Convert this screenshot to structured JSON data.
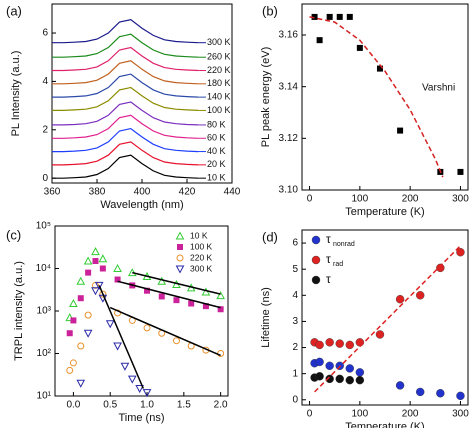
{
  "chart_data": [
    {
      "type": "line",
      "label": "(a)",
      "x_label": "Wavelength (nm)",
      "y_label": "PL Intensity (a.u.)",
      "xlim": [
        360,
        440
      ],
      "xticks": [
        360,
        380,
        400,
        420,
        440
      ],
      "ylim": [
        -0.2,
        7.2
      ],
      "yticks": [
        0,
        2,
        4,
        6
      ],
      "x": [
        360,
        365,
        370,
        375,
        380,
        385,
        390,
        395,
        400,
        405,
        410,
        415,
        420,
        425
      ],
      "series": [
        {
          "name": "10 K",
          "color": "#000000",
          "values": [
            0,
            0,
            0.02,
            0.05,
            0.15,
            0.4,
            0.85,
            0.95,
            0.6,
            0.3,
            0.12,
            0.05,
            0.02,
            0
          ]
        },
        {
          "name": "20 K",
          "color": "#e8112d",
          "values": [
            0.55,
            0.55,
            0.57,
            0.6,
            0.7,
            0.95,
            1.4,
            1.5,
            1.15,
            0.85,
            0.67,
            0.6,
            0.57,
            0.55
          ]
        },
        {
          "name": "40 K",
          "color": "#1f3fff",
          "values": [
            1.1,
            1.1,
            1.12,
            1.15,
            1.25,
            1.5,
            1.95,
            2.05,
            1.7,
            1.4,
            1.22,
            1.15,
            1.12,
            1.1
          ]
        },
        {
          "name": "60 K",
          "color": "#e0208e",
          "values": [
            1.65,
            1.65,
            1.67,
            1.7,
            1.8,
            2.05,
            2.5,
            2.6,
            2.25,
            1.95,
            1.77,
            1.7,
            1.67,
            1.65
          ]
        },
        {
          "name": "80 K",
          "color": "#7b2fbf",
          "values": [
            2.2,
            2.2,
            2.22,
            2.25,
            2.35,
            2.6,
            3.05,
            3.15,
            2.8,
            2.5,
            2.32,
            2.25,
            2.22,
            2.2
          ]
        },
        {
          "name": "100 K",
          "color": "#8c8c00",
          "values": [
            2.8,
            2.8,
            2.82,
            2.85,
            2.95,
            3.2,
            3.65,
            3.75,
            3.4,
            3.1,
            2.92,
            2.85,
            2.82,
            2.8
          ]
        },
        {
          "name": "140 K",
          "color": "#2b4aa8",
          "values": [
            3.35,
            3.35,
            3.37,
            3.4,
            3.5,
            3.75,
            4.2,
            4.3,
            3.95,
            3.65,
            3.47,
            3.4,
            3.37,
            3.35
          ]
        },
        {
          "name": "180 K",
          "color": "#c06020",
          "values": [
            3.9,
            3.9,
            3.92,
            3.95,
            4.05,
            4.3,
            4.75,
            4.85,
            4.5,
            4.2,
            4.02,
            3.95,
            3.92,
            3.9
          ]
        },
        {
          "name": "220 K",
          "color": "#e0206a",
          "values": [
            4.45,
            4.45,
            4.47,
            4.5,
            4.6,
            4.85,
            5.3,
            5.4,
            5.05,
            4.75,
            4.57,
            4.5,
            4.47,
            4.45
          ]
        },
        {
          "name": "260 K",
          "color": "#1a8a1a",
          "values": [
            5.0,
            5.0,
            5.02,
            5.05,
            5.15,
            5.4,
            5.85,
            5.95,
            5.6,
            5.3,
            5.12,
            5.05,
            5.02,
            5.0
          ]
        },
        {
          "name": "300 K",
          "color": "#1a1a8c",
          "values": [
            5.6,
            5.6,
            5.62,
            5.65,
            5.75,
            6.0,
            6.45,
            6.55,
            6.2,
            5.9,
            5.72,
            5.65,
            5.62,
            5.6
          ]
        }
      ]
    },
    {
      "type": "scatter",
      "label": "(b)",
      "x_label": "Temperature (K)",
      "y_label": "PL peak energy (eV)",
      "annotation": "Varshni",
      "xlim": [
        -15,
        315
      ],
      "xticks": [
        0,
        100,
        200,
        300
      ],
      "ylim": [
        3.1,
        3.172
      ],
      "yticks": [
        {
          "value": 3.1,
          "label": "3.10"
        },
        {
          "value": 3.12,
          "label": "3.12"
        },
        {
          "value": 3.14,
          "label": "3.14"
        },
        {
          "value": 3.16,
          "label": "3.16"
        }
      ],
      "series": [
        {
          "color": "#000000",
          "marker": "square",
          "x": [
            10,
            20,
            40,
            60,
            80,
            100,
            140,
            180,
            260,
            300
          ],
          "values": [
            3.167,
            3.158,
            3.167,
            3.167,
            3.167,
            3.155,
            3.147,
            3.123,
            3.107,
            3.107
          ]
        }
      ],
      "fit": {
        "color": "#d42020",
        "dashed": true,
        "x": [
          0,
          50,
          100,
          150,
          200,
          250,
          265
        ],
        "values": [
          3.167,
          3.165,
          3.158,
          3.146,
          3.131,
          3.112,
          3.105
        ]
      }
    },
    {
      "type": "scatter",
      "label": "(c)",
      "x_label": "Time (ns)",
      "y_label": "TRPL intensity (a.u.)",
      "log_y": true,
      "legend": "upper right",
      "xlim": [
        -0.25,
        2.1
      ],
      "xticks": [
        {
          "value": 0,
          "label": "0.0"
        },
        {
          "value": 0.5,
          "label": "0.5"
        },
        {
          "value": 1,
          "label": "1.0"
        },
        {
          "value": 1.5,
          "label": "1.5"
        },
        {
          "value": 2,
          "label": "2.0"
        }
      ],
      "ylim": [
        10,
        100000
      ],
      "yticks": [
        {
          "value": 10,
          "label": "10¹"
        },
        {
          "value": 100,
          "label": "10²"
        },
        {
          "value": 1000,
          "label": "10³"
        },
        {
          "value": 10000,
          "label": "10⁴"
        },
        {
          "value": 100000,
          "label": "10⁵"
        }
      ],
      "fit_color": "#000000",
      "series": [
        {
          "name": "10 K",
          "color": "#33cc33",
          "marker": "triangle",
          "x": [
            -0.05,
            0,
            0.1,
            0.2,
            0.3,
            0.4,
            0.6,
            0.8,
            1.0,
            1.2,
            1.4,
            1.6,
            1.8,
            2.0
          ],
          "values": [
            700,
            1500,
            5000,
            15000,
            25000,
            17000,
            10000,
            8000,
            6500,
            5000,
            4200,
            3500,
            2800,
            2300
          ],
          "fit": {
            "x": [
              0.8,
              2.0
            ],
            "values": [
              8000,
              2500
            ]
          }
        },
        {
          "name": "100 K",
          "color": "#cc2299",
          "marker": "square",
          "x": [
            -0.05,
            0,
            0.1,
            0.2,
            0.3,
            0.4,
            0.6,
            0.8,
            1.0,
            1.2,
            1.4,
            1.6,
            1.8,
            2.0
          ],
          "values": [
            300,
            600,
            2000,
            8000,
            15000,
            10000,
            5500,
            4000,
            3000,
            2200,
            1800,
            1500,
            1300,
            1100
          ],
          "fit": {
            "x": [
              0.6,
              2.0
            ],
            "values": [
              5000,
              1200
            ]
          }
        },
        {
          "name": "220 K",
          "color": "#e8902a",
          "marker": "circle",
          "x": [
            -0.05,
            0,
            0.1,
            0.2,
            0.3,
            0.4,
            0.6,
            0.8,
            1.0,
            1.2,
            1.4,
            1.6,
            1.8,
            2.0
          ],
          "values": [
            40,
            60,
            150,
            800,
            4000,
            2500,
            900,
            600,
            400,
            300,
            200,
            150,
            120,
            100
          ],
          "fit": {
            "x": [
              0.5,
              2.0
            ],
            "values": [
              1200,
              90
            ]
          }
        },
        {
          "name": "300 K",
          "color": "#2a2aa8",
          "marker": "triangle-down",
          "x": [
            0.1,
            0.2,
            0.3,
            0.35,
            0.4,
            0.5,
            0.6,
            0.7,
            0.8,
            0.9,
            1.0
          ],
          "values": [
            20,
            300,
            3000,
            4000,
            2000,
            500,
            150,
            50,
            25,
            15,
            12
          ],
          "fit": {
            "x": [
              0.35,
              0.95
            ],
            "values": [
              4000,
              15
            ]
          }
        }
      ]
    },
    {
      "type": "scatter",
      "label": "(d)",
      "x_label": "Temperature (K)",
      "y_label": "Lifetime (ns)",
      "legend": "upper left",
      "xlim": [
        -15,
        315
      ],
      "xticks": [
        0,
        100,
        200,
        300
      ],
      "ylim": [
        -0.2,
        6.5
      ],
      "yticks": [
        0,
        1,
        2,
        3,
        4,
        5,
        6
      ],
      "series": [
        {
          "name": "τ",
          "sub": "nonrad",
          "color": "#2233cc",
          "marker": "ball",
          "x": [
            10,
            20,
            40,
            60,
            80,
            100,
            180,
            220,
            260,
            300
          ],
          "values": [
            1.4,
            1.45,
            1.3,
            1.3,
            1.2,
            1.05,
            0.55,
            0.3,
            0.25,
            0.15
          ]
        },
        {
          "name": "τ",
          "sub": "rad",
          "color": "#dd2222",
          "marker": "ball",
          "x": [
            10,
            20,
            40,
            60,
            80,
            100,
            140,
            180,
            220,
            260,
            300
          ],
          "values": [
            2.2,
            2.1,
            2.2,
            2.15,
            2.1,
            2.2,
            2.5,
            3.85,
            4.0,
            5.05,
            5.65
          ]
        },
        {
          "name": "τ",
          "color": "#111111",
          "marker": "ball",
          "x": [
            10,
            20,
            40,
            60,
            80,
            100
          ],
          "values": [
            0.85,
            0.9,
            0.8,
            0.8,
            0.75,
            0.75
          ]
        }
      ],
      "fit": {
        "color": "#dd2222",
        "dashed": true,
        "x": [
          10,
          300
        ],
        "values": [
          0.3,
          5.9
        ]
      }
    }
  ]
}
